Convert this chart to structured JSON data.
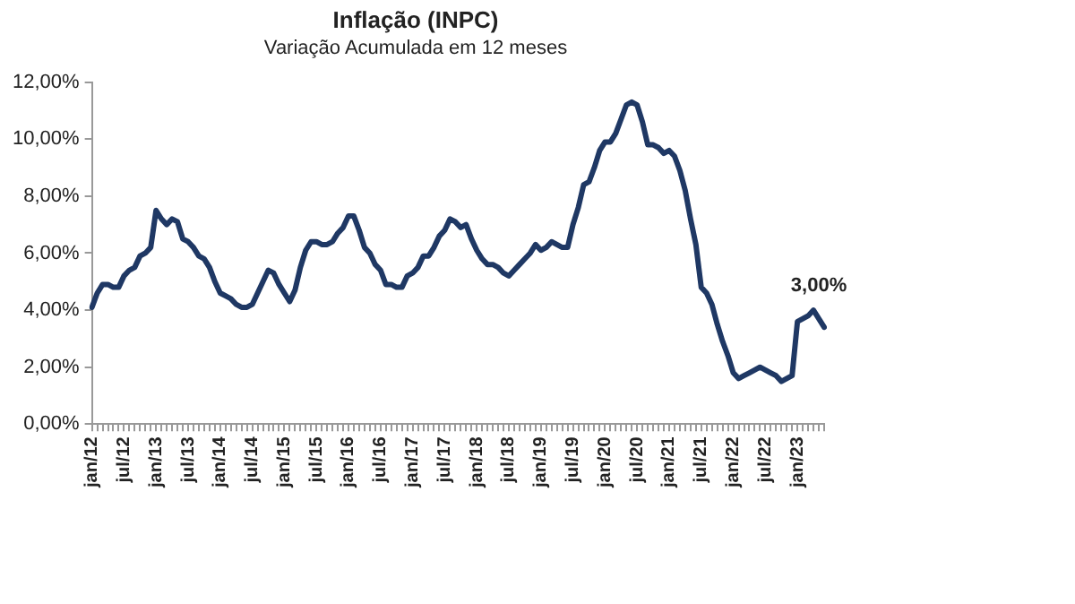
{
  "chart_data": {
    "type": "line",
    "title": "Inflação (INPC)",
    "subtitle": "Variação Acumulada em 12 meses",
    "categories": [
      "jan/12",
      null,
      null,
      null,
      null,
      null,
      "jul/12",
      null,
      null,
      null,
      null,
      null,
      "jan/13",
      null,
      null,
      null,
      null,
      null,
      "jul/13",
      null,
      null,
      null,
      null,
      null,
      "jan/14",
      null,
      null,
      null,
      null,
      null,
      "jul/14",
      null,
      null,
      null,
      null,
      null,
      "jan/15",
      null,
      null,
      null,
      null,
      null,
      "jul/15",
      null,
      null,
      null,
      null,
      null,
      "jan/16",
      null,
      null,
      null,
      null,
      null,
      "jul/16",
      null,
      null,
      null,
      null,
      null,
      "jan/17",
      null,
      null,
      null,
      null,
      null,
      "jul/17",
      null,
      null,
      null,
      null,
      null,
      "jan/18",
      null,
      null,
      null,
      null,
      null,
      "jul/18",
      null,
      null,
      null,
      null,
      null,
      "jan/19",
      null,
      null,
      null,
      null,
      null,
      "jul/19",
      null,
      null,
      null,
      null,
      null,
      "jan/20",
      null,
      null,
      null,
      null,
      null,
      "jul/20",
      null,
      null,
      null,
      null,
      null,
      "jan/21",
      null,
      null,
      null,
      null,
      null,
      "jul/21",
      null,
      null,
      null,
      null,
      null,
      "jan/22",
      null,
      null,
      null,
      null,
      null,
      "jul/22",
      null,
      null,
      null,
      null,
      null,
      "jan/23",
      null,
      null,
      null,
      null,
      null
    ],
    "series": [
      {
        "color": "#1f3864",
        "values": [
          4.1,
          4.6,
          4.9,
          4.9,
          4.8,
          4.8,
          5.2,
          5.4,
          5.5,
          5.9,
          6.0,
          6.2,
          7.5,
          7.2,
          7.0,
          7.2,
          7.1,
          6.5,
          6.4,
          6.2,
          5.9,
          5.8,
          5.5,
          5.0,
          4.6,
          4.5,
          4.4,
          4.2,
          4.1,
          4.1,
          4.2,
          4.6,
          5.0,
          5.4,
          5.3,
          4.9,
          4.6,
          4.3,
          4.7,
          5.5,
          6.1,
          6.4,
          6.4,
          6.3,
          6.3,
          6.4,
          6.7,
          6.9,
          7.3,
          7.3,
          6.8,
          6.2,
          6.0,
          5.6,
          5.4,
          4.9,
          4.9,
          4.8,
          4.8,
          5.2,
          5.3,
          5.5,
          5.9,
          5.9,
          6.2,
          6.6,
          6.8,
          7.2,
          7.1,
          6.9,
          7.0,
          6.5,
          6.1,
          5.8,
          5.6,
          5.6,
          5.5,
          5.3,
          5.2,
          5.4,
          5.6,
          5.8,
          6.0,
          6.3,
          6.1,
          6.2,
          6.4,
          6.3,
          6.2,
          6.2,
          7.0,
          7.6,
          8.4,
          8.5,
          9.0,
          9.6,
          9.9,
          9.9,
          10.2,
          10.7,
          11.2,
          11.3,
          11.2,
          10.6,
          9.8,
          9.8,
          9.7,
          9.5,
          9.6,
          9.4,
          8.9,
          8.2,
          7.2,
          6.3,
          4.8,
          4.6,
          4.2,
          3.5,
          2.9,
          2.4,
          1.8,
          1.6,
          1.7,
          1.8,
          1.9,
          2.0,
          1.9,
          1.8,
          1.7,
          1.5,
          1.6,
          1.7,
          3.6,
          3.7,
          3.8,
          4.0,
          3.7,
          3.4
        ]
      }
    ],
    "ylim": [
      0,
      12
    ],
    "yticks": [
      {
        "value": 0,
        "label": "0,00%"
      },
      {
        "value": 2,
        "label": "2,00%"
      },
      {
        "value": 4,
        "label": "4,00%"
      },
      {
        "value": 6,
        "label": "6,00%"
      },
      {
        "value": 8,
        "label": "8,00%"
      },
      {
        "value": 10,
        "label": "10,00%"
      },
      {
        "value": 12,
        "label": "12,00%"
      }
    ],
    "grid": false,
    "legend": false,
    "marker": "none",
    "line_style": "solid",
    "annotations": [
      "3,00%"
    ]
  }
}
